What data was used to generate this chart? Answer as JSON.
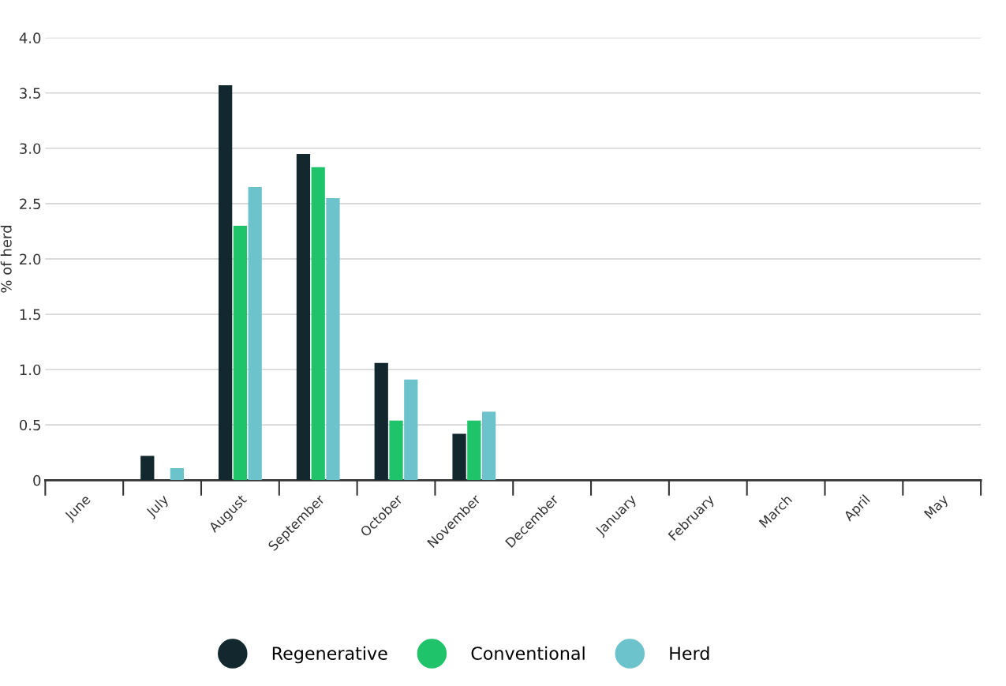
{
  "chart_data": {
    "type": "bar",
    "ylabel": "% of herd",
    "categories": [
      "June",
      "July",
      "August",
      "September",
      "October",
      "November",
      "December",
      "January",
      "February",
      "March",
      "April",
      "May"
    ],
    "series": [
      {
        "name": "Regenerative",
        "color": "#12282e",
        "values": [
          0,
          0.22,
          3.57,
          2.95,
          1.06,
          0.42,
          0,
          0,
          0,
          0,
          0,
          0
        ]
      },
      {
        "name": "Conventional",
        "color": "#1fc46a",
        "values": [
          0,
          0,
          2.3,
          2.83,
          0.54,
          0.54,
          0,
          0,
          0,
          0,
          0,
          0
        ]
      },
      {
        "name": "Herd",
        "color": "#6cc3cc",
        "values": [
          0,
          0.11,
          2.65,
          2.55,
          0.91,
          0.62,
          0,
          0,
          0,
          0,
          0,
          0
        ]
      }
    ],
    "ylim": [
      0,
      4.0
    ],
    "yticks": [
      0,
      {
        "value": 0.5,
        "label": "0.5"
      },
      {
        "value": 1,
        "label": "1.0"
      },
      {
        "value": 1.5,
        "label": "1.5"
      },
      {
        "value": 2,
        "label": "2.0"
      },
      {
        "value": 2.5,
        "label": "2.5"
      },
      {
        "value": 3,
        "label": "3.0"
      },
      {
        "value": 3.5,
        "label": "3.5"
      },
      {
        "value": 4,
        "label": "4.0"
      }
    ],
    "grid": "y",
    "legend": "bottom"
  }
}
